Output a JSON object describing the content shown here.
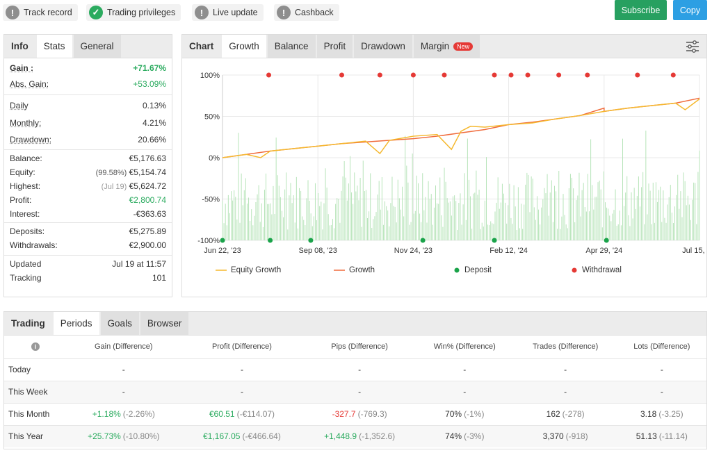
{
  "badges": [
    {
      "label": "Track record",
      "icon": "info-icon",
      "state": "grey"
    },
    {
      "label": "Trading privileges",
      "icon": "check-icon",
      "state": "green"
    },
    {
      "label": "Live update",
      "icon": "info-icon",
      "state": "grey"
    },
    {
      "label": "Cashback",
      "icon": "info-icon",
      "state": "grey"
    }
  ],
  "buttons": {
    "subscribe": "Subscribe",
    "copy": "Copy"
  },
  "colors": {
    "subscribe": "#27a060",
    "copy": "#2d9fe3",
    "green": "#2bab5f",
    "red": "#e53935",
    "growth": "#f06b3c",
    "equity": "#f5b82e",
    "deposit": "#1aa34a",
    "withdrawal": "#e53935",
    "bars": "#b7e4b9"
  },
  "left_tabs": [
    "Info",
    "Stats",
    "General"
  ],
  "stats": {
    "gain": {
      "label": "Gain :",
      "value": "+71.67%"
    },
    "abs_gain": {
      "label": "Abs. Gain:",
      "value": "+53.09%"
    },
    "daily": {
      "label": "Daily",
      "value": "0.13%"
    },
    "monthly": {
      "label": "Monthly:",
      "value": "4.21%"
    },
    "drawdown": {
      "label": "Drawdown:",
      "value": "20.66%"
    },
    "balance": {
      "label": "Balance:",
      "value": "€5,176.63"
    },
    "equity": {
      "label": "Equity:",
      "note": "(99.58%)",
      "value": "€5,154.74"
    },
    "highest": {
      "label": "Highest:",
      "note": "(Jul 19)",
      "value": "€5,624.72"
    },
    "profit": {
      "label": "Profit:",
      "value": "€2,800.74"
    },
    "interest": {
      "label": "Interest:",
      "value": "-€363.63"
    },
    "deposits": {
      "label": "Deposits:",
      "value": "€5,275.89"
    },
    "withdrawals": {
      "label": "Withdrawals:",
      "value": "€2,900.00"
    },
    "updated": {
      "label": "Updated",
      "value": "Jul 19 at 11:57"
    },
    "tracking": {
      "label": "Tracking",
      "value": "101"
    }
  },
  "chart_tabs": {
    "head": "Chart",
    "items": [
      "Growth",
      "Balance",
      "Profit",
      "Drawdown",
      "Margin"
    ],
    "new_badge": "New"
  },
  "chart_data": {
    "type": "line",
    "x_labels": [
      "Jun 22, '23",
      "Sep 08, '23",
      "Nov 24, '23",
      "Feb 12, '24",
      "Apr 29, '24",
      "Jul 15, '24"
    ],
    "y_ticks": [
      "100%",
      "50%",
      "0%",
      "-50%",
      "-100%"
    ],
    "ylim": [
      -100,
      100
    ],
    "series": [
      {
        "name": "Growth",
        "x": [
          0,
          0.05,
          0.1,
          0.15,
          0.2,
          0.25,
          0.3,
          0.35,
          0.4,
          0.45,
          0.5,
          0.55,
          0.6,
          0.65,
          0.7,
          0.75,
          0.8,
          0.8,
          0.85,
          0.9,
          0.95,
          1.0
        ],
        "values": [
          0,
          4,
          8,
          11,
          14,
          17,
          19,
          21,
          23,
          26,
          30,
          34,
          40,
          43,
          47,
          51,
          60,
          56,
          60,
          63,
          66,
          72
        ]
      },
      {
        "name": "Equity Growth",
        "x": [
          0,
          0.05,
          0.08,
          0.1,
          0.15,
          0.2,
          0.25,
          0.3,
          0.33,
          0.35,
          0.37,
          0.4,
          0.45,
          0.48,
          0.5,
          0.52,
          0.55,
          0.6,
          0.65,
          0.7,
          0.75,
          0.8,
          0.85,
          0.9,
          0.95,
          0.97,
          1.0
        ],
        "values": [
          0,
          4,
          0,
          8,
          11,
          14,
          17,
          20,
          5,
          21,
          23,
          26,
          28,
          10,
          32,
          38,
          37,
          40,
          42,
          47,
          51,
          56,
          60,
          63,
          66,
          58,
          71
        ]
      }
    ],
    "deposits_x": [
      0,
      0.1,
      0.185,
      0.42,
      0.57,
      0.805
    ],
    "withdrawals_x": [
      0.097,
      0.25,
      0.33,
      0.4,
      0.465,
      0.57,
      0.605,
      0.64,
      0.705,
      0.765,
      0.87,
      0.945
    ],
    "legend": [
      "Equity Growth",
      "Growth",
      "Deposit",
      "Withdrawal"
    ]
  },
  "bottom_tabs": [
    "Trading",
    "Periods",
    "Goals",
    "Browser"
  ],
  "periods": {
    "headers": [
      "Gain (Difference)",
      "Profit (Difference)",
      "Pips (Difference)",
      "Win% (Difference)",
      "Trades (Difference)",
      "Lots (Difference)"
    ],
    "rows": [
      {
        "label": "Today",
        "cells": [
          [
            "-",
            ""
          ],
          [
            "-",
            ""
          ],
          [
            "-",
            ""
          ],
          [
            "-",
            ""
          ],
          [
            "-",
            ""
          ],
          [
            "-",
            ""
          ]
        ]
      },
      {
        "label": "This Week",
        "cells": [
          [
            "-",
            ""
          ],
          [
            "-",
            ""
          ],
          [
            "-",
            ""
          ],
          [
            "-",
            ""
          ],
          [
            "-",
            ""
          ],
          [
            "-",
            ""
          ]
        ]
      },
      {
        "label": "This Month",
        "cells": [
          [
            "+1.18%",
            "(-2.26%)"
          ],
          [
            "€60.51",
            "(-€114.07)"
          ],
          [
            "-327.7",
            "(-769.3)"
          ],
          [
            "70%",
            "(-1%)"
          ],
          [
            "162",
            "(-278)"
          ],
          [
            "3.18",
            "(-3.25)"
          ]
        ]
      },
      {
        "label": "This Year",
        "cells": [
          [
            "+25.73%",
            "(-10.80%)"
          ],
          [
            "€1,167.05",
            "(-€466.64)"
          ],
          [
            "+1,448.9",
            "(-1,352.6)"
          ],
          [
            "74%",
            "(-3%)"
          ],
          [
            "3,370",
            "(-918)"
          ],
          [
            "51.13",
            "(-11.14)"
          ]
        ]
      }
    ]
  }
}
